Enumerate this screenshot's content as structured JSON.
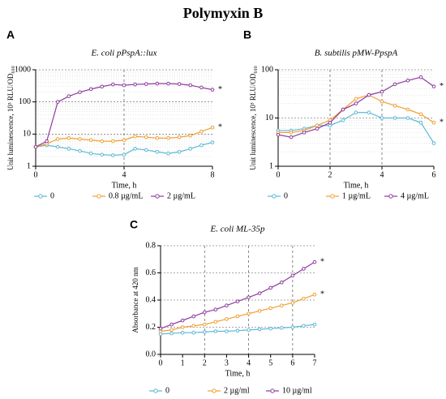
{
  "title": "Polymyxin  B",
  "chart_data": [
    {
      "type": "line",
      "panel": "A",
      "title": "E. coli pPspA::lux",
      "x_label": "Time, h",
      "y_label": "Unit luminescence, 10³ RLU/OD₆₀₀",
      "log_y": true,
      "xlim": [
        0,
        8
      ],
      "xticks": [
        0,
        4,
        8
      ],
      "ylim": [
        1,
        1000
      ],
      "yticks": [
        1,
        10,
        100,
        1000
      ],
      "vlines": [
        4
      ],
      "x": [
        0,
        0.5,
        1,
        1.5,
        2,
        2.5,
        3,
        3.5,
        4,
        4.5,
        5,
        5.5,
        6,
        6.5,
        7,
        7.5,
        8
      ],
      "series": [
        {
          "name": "0",
          "color": "#5bb8d8",
          "values": [
            4,
            4.5,
            4,
            3.5,
            3,
            2.5,
            2.3,
            2.2,
            2.3,
            3.5,
            3.2,
            2.8,
            2.5,
            2.8,
            3.5,
            4.5,
            5.5
          ]
        },
        {
          "name": "0.8 µg/mL",
          "color": "#f0a030",
          "annotation": "*",
          "values": [
            4,
            5,
            7,
            7.5,
            7,
            6.5,
            6,
            6,
            6.5,
            8.5,
            8,
            7.5,
            7.5,
            8,
            9,
            12,
            16
          ]
        },
        {
          "name": "2 µg/mL",
          "color": "#8e3a9e",
          "annotation": "*",
          "values": [
            4,
            6,
            100,
            150,
            200,
            250,
            300,
            350,
            330,
            350,
            360,
            370,
            370,
            360,
            330,
            280,
            240
          ]
        }
      ]
    },
    {
      "type": "line",
      "panel": "B",
      "title": "B. subtilis pMW-PpspA",
      "x_label": "Time, h",
      "y_label": "Unit luminescence, 10³ RLU/OD₆₀₀",
      "log_y": true,
      "xlim": [
        0,
        6
      ],
      "xticks": [
        0,
        2,
        4,
        6
      ],
      "ylim": [
        1,
        100
      ],
      "yticks": [
        1,
        10,
        100
      ],
      "vlines": [
        2,
        4
      ],
      "x": [
        0,
        0.5,
        1,
        1.5,
        2,
        2.5,
        3,
        3.5,
        4,
        4.5,
        5,
        5.5,
        6
      ],
      "series": [
        {
          "name": "0",
          "color": "#5bb8d8",
          "values": [
            5.5,
            5.5,
            6,
            7,
            7,
            9,
            13,
            13,
            10,
            10,
            10,
            8,
            3
          ]
        },
        {
          "name": "1 µg/mL",
          "color": "#f0a030",
          "annotation": "*",
          "values": [
            5,
            5,
            5.5,
            7,
            9,
            15,
            25,
            30,
            22,
            18,
            15,
            12,
            8
          ]
        },
        {
          "name": "4 µg/mL",
          "color": "#8e3a9e",
          "annotation": "*",
          "values": [
            4.5,
            4,
            5,
            6,
            8,
            15,
            20,
            30,
            35,
            50,
            60,
            70,
            45
          ]
        }
      ]
    },
    {
      "type": "line",
      "panel": "C",
      "title": "E. coli ML-35p",
      "x_label": "Time, h",
      "y_label": "Absorbance at 420 nm",
      "log_y": false,
      "xlim": [
        0,
        7
      ],
      "xticks": [
        0,
        1,
        2,
        3,
        4,
        5,
        6,
        7
      ],
      "ylim": [
        0,
        0.8
      ],
      "yticks": [
        {
          "value": 0,
          "label": "0.0"
        },
        0.2,
        0.4,
        0.6,
        0.8
      ],
      "vlines": [
        2,
        4,
        6
      ],
      "x": [
        0,
        0.5,
        1,
        1.5,
        2,
        2.5,
        3,
        3.5,
        4,
        4.5,
        5,
        5.5,
        6,
        6.5,
        7
      ],
      "series": [
        {
          "name": "0",
          "color": "#5bb8d8",
          "values": [
            0.15,
            0.155,
            0.16,
            0.16,
            0.165,
            0.17,
            0.17,
            0.175,
            0.18,
            0.185,
            0.19,
            0.195,
            0.2,
            0.21,
            0.22
          ]
        },
        {
          "name": "2 µg/ml",
          "color": "#f0a030",
          "annotation": "*",
          "values": [
            0.17,
            0.18,
            0.2,
            0.21,
            0.22,
            0.24,
            0.26,
            0.28,
            0.3,
            0.32,
            0.34,
            0.36,
            0.38,
            0.41,
            0.44
          ]
        },
        {
          "name": "10 µg/ml",
          "color": "#8e3a9e",
          "annotation": "*",
          "values": [
            0.19,
            0.22,
            0.25,
            0.28,
            0.31,
            0.33,
            0.36,
            0.39,
            0.42,
            0.45,
            0.49,
            0.53,
            0.58,
            0.63,
            0.68
          ]
        }
      ]
    }
  ]
}
